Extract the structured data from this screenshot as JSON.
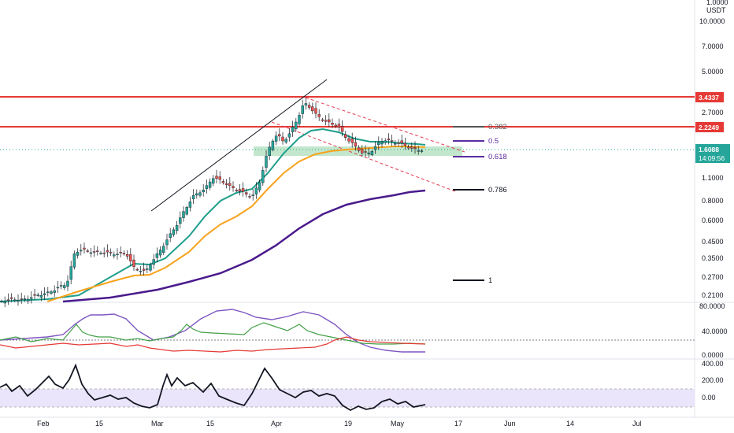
{
  "price_axis": {
    "currency_top": "1.0000",
    "currency": "USDT",
    "ticks": [
      "10.0000",
      "7.0000",
      "5.0000",
      "2.7000",
      "1.1000",
      "0.8000",
      "0.6000",
      "0.4500",
      "0.3500",
      "0.2700",
      "0.2100"
    ],
    "tags": {
      "resistance_high": "3.4337",
      "resistance_low": "2.2249",
      "last_price": "1.6088",
      "countdown": "14:09:56"
    }
  },
  "oscillator_axis": {
    "ticks": [
      "80.0000",
      "40.0000",
      "0.0000"
    ]
  },
  "cci_axis": {
    "ticks": [
      "400.00",
      "200.00",
      "0.00"
    ]
  },
  "time_axis": {
    "labels": [
      "Feb",
      "15",
      "Mar",
      "15",
      "Apr",
      "19",
      "May",
      "17",
      "Jun",
      "14",
      "Jul"
    ]
  },
  "fib_levels": [
    {
      "label": "0.382",
      "color": "#555555"
    },
    {
      "label": "0.5",
      "color": "#5b2c9f"
    },
    {
      "label": "0.618",
      "color": "#5b2c9f"
    },
    {
      "label": "0.786",
      "color": "#131722"
    },
    {
      "label": "1",
      "color": "#131722"
    }
  ],
  "colors": {
    "resistance": "#e53935",
    "bull_candle": "#26a69a",
    "bear_candle": "#ef5350",
    "ema_fast": "#1f9e8c",
    "ema_mid": "#f7a21b",
    "ema_slow": "#4a1a8c",
    "demand_zone": "#b9e3c3",
    "cci_band": "#e6defa",
    "adx": "#7e57c2",
    "di_plus": "#43a047",
    "di_minus": "#e53935",
    "last_price_tag": "#26a69a"
  }
}
